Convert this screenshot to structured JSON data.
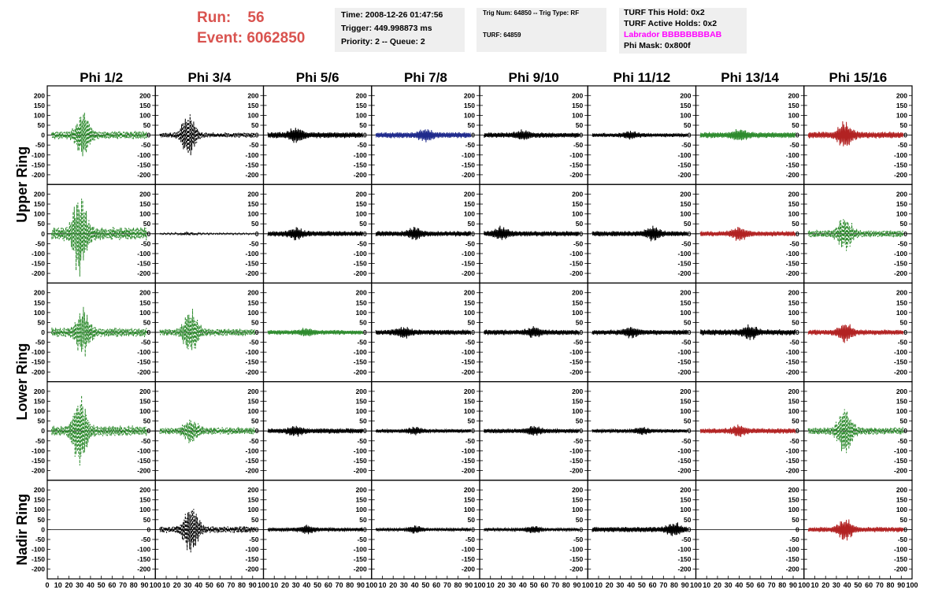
{
  "header": {
    "run_label": "Run:",
    "run_value": "56",
    "event_label": "Event:",
    "event_value": "6062850",
    "time": "Time: 2008-12-26 01:47:56",
    "trigger": "Trigger: 449.998873 ms",
    "priority": "Priority: 2 -- Queue: 2",
    "trig_info": "Trig Num: 64850 -- Trig Type: RF",
    "turf": "TURF: 64859",
    "turf_this_hold": "TURF This Hold: 0x2",
    "turf_active_holds": "TURF Active Holds: 0x2",
    "labrador": "Labrador BBBBBBBBAB",
    "phi_mask": "Phi Mask: 0x800f"
  },
  "colors": {
    "run_event": "#d9534f",
    "labrador": "#ff00ff",
    "green": "#2e8b2e",
    "black": "#000000",
    "blue": "#1f2a8c",
    "red": "#b22222"
  },
  "chart_data": {
    "type": "line",
    "columns": [
      "Phi 1/2",
      "Phi 3/4",
      "Phi 5/6",
      "Phi 7/8",
      "Phi 9/10",
      "Phi 11/12",
      "Phi 13/14",
      "Phi 15/16"
    ],
    "row_labels": [
      {
        "label": "Upper Ring",
        "spans": [
          0,
          1
        ]
      },
      {
        "label": "Lower Ring",
        "spans": [
          2,
          3
        ]
      },
      {
        "label": "Nadir Ring",
        "spans": [
          4,
          4
        ]
      }
    ],
    "ylim": [
      -225,
      225
    ],
    "yticks": [
      -200,
      -150,
      -100,
      -50,
      0,
      50,
      100,
      150,
      200
    ],
    "xlim": [
      0,
      100
    ],
    "xticks": [
      0,
      10,
      20,
      30,
      40,
      50,
      60,
      70,
      80,
      90,
      100
    ],
    "panels": [
      [
        {
          "color": "green",
          "dashed": true,
          "peak": 110,
          "peakAt": 33,
          "noise": 22
        },
        {
          "color": "black",
          "dashed": true,
          "peak": 115,
          "peakAt": 31,
          "noise": 14
        },
        {
          "color": "black",
          "dashed": false,
          "peak": 28,
          "peakAt": 30,
          "noise": 16
        },
        {
          "color": "blue",
          "dashed": false,
          "peak": 22,
          "peakAt": 50,
          "noise": 16
        },
        {
          "color": "black",
          "dashed": false,
          "peak": 18,
          "peakAt": 40,
          "noise": 14
        },
        {
          "color": "black",
          "dashed": false,
          "peak": 14,
          "peakAt": 40,
          "noise": 10
        },
        {
          "color": "green",
          "dashed": false,
          "peak": 22,
          "peakAt": 40,
          "noise": 16
        },
        {
          "color": "red",
          "dashed": false,
          "peak": 60,
          "peakAt": 38,
          "noise": 18
        }
      ],
      [
        {
          "color": "green",
          "dashed": true,
          "peak": 190,
          "peakAt": 30,
          "noise": 35
        },
        {
          "color": "black",
          "dashed": true,
          "peak": 6,
          "peakAt": 30,
          "noise": 4
        },
        {
          "color": "black",
          "dashed": false,
          "peak": 22,
          "peakAt": 30,
          "noise": 14
        },
        {
          "color": "black",
          "dashed": false,
          "peak": 22,
          "peakAt": 40,
          "noise": 14
        },
        {
          "color": "black",
          "dashed": false,
          "peak": 28,
          "peakAt": 20,
          "noise": 14
        },
        {
          "color": "black",
          "dashed": false,
          "peak": 28,
          "peakAt": 60,
          "noise": 14
        },
        {
          "color": "red",
          "dashed": false,
          "peak": 30,
          "peakAt": 40,
          "noise": 14
        },
        {
          "color": "green",
          "dashed": true,
          "peak": 80,
          "peakAt": 38,
          "noise": 20
        }
      ],
      [
        {
          "color": "green",
          "dashed": true,
          "peak": 110,
          "peakAt": 33,
          "noise": 25
        },
        {
          "color": "green",
          "dashed": true,
          "peak": 110,
          "peakAt": 33,
          "noise": 20
        },
        {
          "color": "green",
          "dashed": false,
          "peak": 15,
          "peakAt": 40,
          "noise": 12
        },
        {
          "color": "black",
          "dashed": false,
          "peak": 22,
          "peakAt": 30,
          "noise": 14
        },
        {
          "color": "black",
          "dashed": false,
          "peak": 18,
          "peakAt": 50,
          "noise": 14
        },
        {
          "color": "black",
          "dashed": false,
          "peak": 18,
          "peakAt": 40,
          "noise": 14
        },
        {
          "color": "black",
          "dashed": false,
          "peak": 28,
          "peakAt": 50,
          "noise": 16
        },
        {
          "color": "red",
          "dashed": false,
          "peak": 45,
          "peakAt": 38,
          "noise": 14
        }
      ],
      [
        {
          "color": "green",
          "dashed": true,
          "peak": 170,
          "peakAt": 30,
          "noise": 28
        },
        {
          "color": "green",
          "dashed": true,
          "peak": 55,
          "peakAt": 33,
          "noise": 20
        },
        {
          "color": "black",
          "dashed": false,
          "peak": 18,
          "peakAt": 30,
          "noise": 14
        },
        {
          "color": "black",
          "dashed": false,
          "peak": 14,
          "peakAt": 40,
          "noise": 10
        },
        {
          "color": "black",
          "dashed": false,
          "peak": 16,
          "peakAt": 50,
          "noise": 12
        },
        {
          "color": "black",
          "dashed": false,
          "peak": 12,
          "peakAt": 50,
          "noise": 10
        },
        {
          "color": "red",
          "dashed": false,
          "peak": 22,
          "peakAt": 40,
          "noise": 14
        },
        {
          "color": "green",
          "dashed": true,
          "peak": 120,
          "peakAt": 38,
          "noise": 20
        }
      ],
      [
        {
          "color": "black",
          "dashed": false,
          "peak": 0,
          "peakAt": 30,
          "noise": 0
        },
        {
          "color": "black",
          "dashed": true,
          "peak": 130,
          "peakAt": 33,
          "noise": 18
        },
        {
          "color": "black",
          "dashed": false,
          "peak": 16,
          "peakAt": 40,
          "noise": 10
        },
        {
          "color": "black",
          "dashed": false,
          "peak": 14,
          "peakAt": 40,
          "noise": 8
        },
        {
          "color": "black",
          "dashed": false,
          "peak": 14,
          "peakAt": 50,
          "noise": 8
        },
        {
          "color": "black",
          "dashed": false,
          "peak": 28,
          "peakAt": 80,
          "noise": 14
        },
        {
          "color": "black",
          "dashed": false,
          "peak": 0,
          "peakAt": 40,
          "noise": 0
        },
        {
          "color": "red",
          "dashed": false,
          "peak": 50,
          "peakAt": 38,
          "noise": 14
        }
      ]
    ]
  }
}
